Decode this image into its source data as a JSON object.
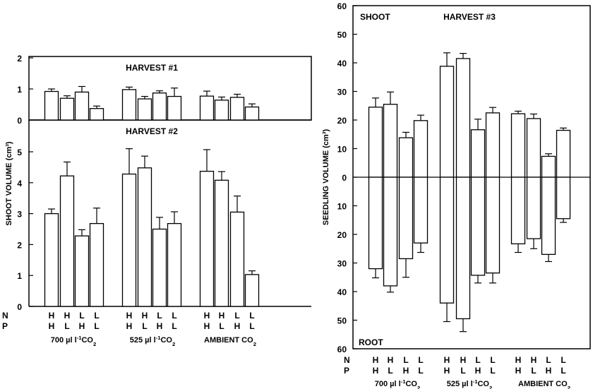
{
  "treatment_row_labels": {
    "n": "N",
    "p": "P"
  },
  "chart_data": [
    {
      "type": "bar",
      "title": "HARVEST #1",
      "ylabel": "",
      "ylim": [
        0,
        2
      ],
      "yticks": [
        0,
        1,
        2
      ],
      "categories": [
        "HH",
        "HL",
        "LH",
        "LL",
        "HH",
        "HL",
        "LH",
        "LL",
        "HH",
        "HL",
        "LH",
        "LL"
      ],
      "n_levels": [
        "H",
        "H",
        "L",
        "L",
        "H",
        "H",
        "L",
        "L",
        "H",
        "H",
        "L",
        "L"
      ],
      "p_levels": [
        "H",
        "L",
        "H",
        "L",
        "H",
        "L",
        "H",
        "L",
        "H",
        "L",
        "H",
        "L"
      ],
      "groups": [
        "700 µl l⁻¹CO₂",
        "525 µl l⁻¹CO₂",
        "AMBIENT CO₂"
      ],
      "values": [
        0.92,
        0.7,
        0.9,
        0.37,
        0.98,
        0.68,
        0.87,
        0.76,
        0.77,
        0.64,
        0.73,
        0.42
      ],
      "errors": [
        0.08,
        0.08,
        0.18,
        0.08,
        0.08,
        0.08,
        0.07,
        0.27,
        0.16,
        0.1,
        0.1,
        0.1
      ],
      "grid": false
    },
    {
      "type": "bar",
      "title": "HARVEST #2",
      "ylabel": "SHOOT VOLUME (cm³)",
      "ylim": [
        0,
        5.5
      ],
      "yticks": [
        0,
        1,
        2,
        3,
        4,
        5
      ],
      "categories": [
        "HH",
        "HL",
        "LH",
        "LL",
        "HH",
        "HL",
        "LH",
        "LL",
        "HH",
        "HL",
        "LH",
        "LL"
      ],
      "groups": [
        "700 µl l⁻¹CO₂",
        "525 µl l⁻¹CO₂",
        "AMBIENT CO₂"
      ],
      "values": [
        3.0,
        4.22,
        2.28,
        2.68,
        4.28,
        4.48,
        2.5,
        2.68,
        4.37,
        4.08,
        3.05,
        1.03
      ],
      "errors": [
        0.15,
        0.45,
        0.2,
        0.5,
        0.82,
        0.38,
        0.38,
        0.38,
        0.7,
        0.28,
        0.52,
        0.12
      ],
      "grid": false
    },
    {
      "type": "bar",
      "title": "HARVEST #3",
      "ylabel": "SEEDLING VOLUME (cm³)",
      "ylim": [
        -60,
        60
      ],
      "yticks": [
        -60,
        -50,
        -40,
        -30,
        -20,
        -10,
        0,
        10,
        20,
        30,
        40,
        50,
        60
      ],
      "ytick_labels": [
        "60",
        "50",
        "40",
        "30",
        "20",
        "10",
        "0",
        "10",
        "20",
        "30",
        "40",
        "50",
        "60"
      ],
      "top_label": "SHOOT",
      "bottom_label": "ROOT",
      "categories": [
        "HH",
        "HL",
        "LH",
        "LL",
        "HH",
        "HL",
        "LH",
        "LL",
        "HH",
        "HL",
        "LH",
        "LL"
      ],
      "groups": [
        "700 µl l⁻¹CO₂",
        "525 µl l⁻¹CO₂",
        "AMBIENT CO₂"
      ],
      "series": [
        {
          "values": [
            24.5,
            25.5,
            13.8,
            19.8,
            38.8,
            41.5,
            16.6,
            22.5,
            22.2,
            20.5,
            7.3,
            16.4
          ],
          "errors": [
            3.2,
            4.3,
            1.9,
            1.9,
            4.7,
            1.8,
            3.7,
            1.9,
            0.9,
            1.6,
            0.9,
            0.8
          ]
        },
        {
          "values": [
            -32.0,
            -38.0,
            -28.5,
            -23.0,
            -44.0,
            -49.5,
            -34.3,
            -33.5,
            -23.3,
            -21.5,
            -27.0,
            -14.5
          ],
          "errors": [
            3.2,
            2.2,
            6.5,
            3.3,
            6.5,
            4.5,
            2.7,
            3.5,
            3.0,
            3.5,
            2.5,
            1.3
          ]
        }
      ],
      "grid": false
    }
  ]
}
